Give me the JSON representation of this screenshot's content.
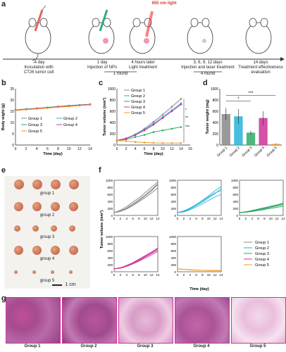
{
  "panels": {
    "a": "a",
    "b": "b",
    "c": "c",
    "d": "d",
    "e": "e",
    "f": "f",
    "g": "g"
  },
  "timeline": {
    "laser": "655 nm light",
    "steps": [
      {
        "day": "-4 day",
        "text": "Inoculation with\nCT26 tumor cell"
      },
      {
        "day": "1 day",
        "text": "Injection of NPs"
      },
      {
        "day": "4 hours later",
        "text": "Light treatment"
      },
      {
        "day": "3, 6, 9, 12 days",
        "text": "Injection and laser treatment"
      },
      {
        "day": "14 days",
        "text": "Treatment effectiveness\nevaluation"
      }
    ],
    "round1": "1 round",
    "round4": "4 round"
  },
  "colors": {
    "g1": "#888888",
    "g2": "#26b3d9",
    "g3": "#2eab66",
    "g4": "#cc3399",
    "g5": "#f39a2a"
  },
  "groups": [
    "Group 1",
    "Group 2",
    "Group 3",
    "Group 4",
    "Group 5"
  ],
  "panel_b": {
    "chart_data": {
      "type": "line",
      "xlabel": "Time (day)",
      "ylabel": "Body wight (g)",
      "x": [
        0,
        2,
        4,
        6,
        8,
        10,
        12,
        14
      ],
      "ylim": [
        0,
        25
      ],
      "yticks": [
        0,
        5,
        10,
        15,
        20,
        25
      ],
      "series": [
        {
          "name": "Group 1",
          "values": [
            15.5,
            15.9,
            16.2,
            16.6,
            17.0,
            17.4,
            17.7,
            18.0
          ]
        },
        {
          "name": "Group 2",
          "values": [
            15.4,
            15.8,
            16.1,
            16.5,
            16.9,
            17.2,
            17.6,
            17.9
          ]
        },
        {
          "name": "Group 3",
          "values": [
            15.6,
            16.0,
            16.3,
            16.7,
            17.1,
            17.5,
            17.8,
            18.1
          ]
        },
        {
          "name": "Group 4",
          "values": [
            15.5,
            15.8,
            16.2,
            16.6,
            17.0,
            17.3,
            17.7,
            18.0
          ]
        },
        {
          "name": "Group 5",
          "values": [
            15.3,
            15.7,
            16.0,
            16.4,
            16.8,
            17.1,
            17.5,
            17.8
          ]
        }
      ]
    }
  },
  "panel_c": {
    "chart_data": {
      "type": "line",
      "xlabel": "Time (day)",
      "ylabel": "Tumor volume (mm³)",
      "x": [
        0,
        2,
        4,
        6,
        8,
        10,
        12,
        14
      ],
      "ylim": [
        0,
        1000
      ],
      "xticks": [
        0,
        2,
        4,
        6,
        8,
        10,
        12,
        14,
        16
      ],
      "yticks": [
        0,
        200,
        400,
        600,
        800,
        1000
      ],
      "series": [
        {
          "name": "Group 1",
          "values": [
            80,
            120,
            190,
            290,
            410,
            540,
            680,
            820
          ]
        },
        {
          "name": "Group 2",
          "values": [
            80,
            115,
            180,
            270,
            380,
            500,
            620,
            740
          ]
        },
        {
          "name": "Group 3",
          "values": [
            80,
            100,
            140,
            180,
            230,
            260,
            290,
            320
          ]
        },
        {
          "name": "Group 4",
          "values": [
            80,
            115,
            175,
            260,
            360,
            480,
            600,
            720
          ]
        },
        {
          "name": "Group 5",
          "values": [
            80,
            70,
            55,
            45,
            38,
            35,
            35,
            35
          ]
        }
      ],
      "annotations": [
        "*",
        "**",
        "***"
      ]
    }
  },
  "panel_d": {
    "chart_data": {
      "type": "bar",
      "ylabel": "Tumor weight (mg)",
      "categories": [
        "Group 1",
        "Group 2",
        "Group 3",
        "Group 4",
        "Group 5"
      ],
      "values": [
        550,
        510,
        220,
        480,
        20
      ],
      "errors": [
        110,
        130,
        35,
        120,
        10
      ],
      "ylim": [
        0,
        1000
      ],
      "yticks": [
        0,
        200,
        400,
        600,
        800,
        1000
      ],
      "annotations": [
        "*",
        "***"
      ]
    }
  },
  "panel_e": {
    "rows": [
      "group 1",
      "group 2",
      "group 3",
      "group 4",
      "group 5"
    ],
    "scale": "1 cm"
  },
  "panel_f": {
    "ylabel": "Tumor volume (mm³)",
    "xlabel": "Time (day)",
    "xticks": [
      "0",
      "2",
      "4",
      "6",
      "8",
      "10",
      "12",
      "14"
    ],
    "yticks": [
      "0",
      "200",
      "400",
      "600",
      "800",
      "1000"
    ],
    "legend": [
      "Group 1",
      "Group 2",
      "Group 3",
      "Group 4",
      "Group 5"
    ]
  },
  "panel_g": {
    "labels": [
      "Group 1",
      "Group 2",
      "Group 3",
      "Group 4",
      "Group 5"
    ]
  }
}
